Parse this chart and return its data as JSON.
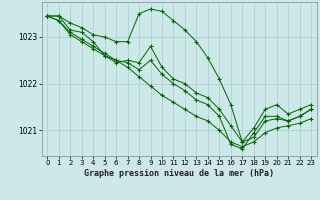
{
  "background_color": "#cce8e8",
  "grid_color": "#aacccc",
  "line_color": "#006600",
  "marker_color": "#006600",
  "title": "Graphe pression niveau de la mer (hPa)",
  "xlim": [
    -0.5,
    23.5
  ],
  "ylim": [
    1020.45,
    1023.75
  ],
  "yticks": [
    1021,
    1022,
    1023
  ],
  "xticks": [
    0,
    1,
    2,
    3,
    4,
    5,
    6,
    7,
    8,
    9,
    10,
    11,
    12,
    13,
    14,
    15,
    16,
    17,
    18,
    19,
    20,
    21,
    22,
    23
  ],
  "series": [
    [
      1023.45,
      1023.45,
      1023.3,
      1023.2,
      1023.05,
      1023.0,
      1022.9,
      1022.9,
      1023.5,
      1023.6,
      1023.55,
      1023.35,
      1023.15,
      1022.9,
      1022.55,
      1022.1,
      1021.55,
      1020.75,
      1021.05,
      1021.45,
      1021.55,
      1021.35,
      1021.45,
      1021.55
    ],
    [
      1023.45,
      1023.45,
      1023.15,
      1023.1,
      1022.9,
      1022.6,
      1022.45,
      1022.5,
      1022.45,
      1022.8,
      1022.35,
      1022.1,
      1022.0,
      1021.8,
      1021.7,
      1021.45,
      1021.1,
      1020.75,
      1020.85,
      1021.2,
      1021.25,
      1021.2,
      1021.3,
      1021.45
    ],
    [
      1023.45,
      1023.35,
      1023.1,
      1022.95,
      1022.8,
      1022.65,
      1022.5,
      1022.35,
      1022.15,
      1021.95,
      1021.75,
      1021.6,
      1021.45,
      1021.3,
      1021.2,
      1021.0,
      1020.75,
      1020.65,
      1020.75,
      1020.95,
      1021.05,
      1021.1,
      1021.15,
      1021.25
    ],
    [
      1023.45,
      1023.35,
      1023.05,
      1022.9,
      1022.75,
      1022.6,
      1022.5,
      1022.45,
      1022.3,
      1022.5,
      1022.2,
      1022.0,
      1021.85,
      1021.65,
      1021.55,
      1021.3,
      1020.7,
      1020.6,
      1020.95,
      1021.3,
      1021.3,
      1021.2,
      1021.3,
      1021.45
    ]
  ]
}
